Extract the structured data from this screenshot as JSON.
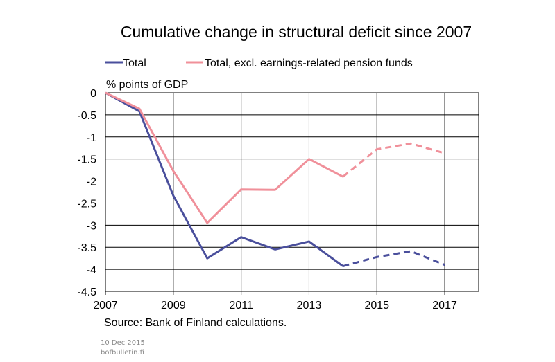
{
  "chart_data": {
    "type": "line",
    "title": "Cumulative change in structural deficit since 2007",
    "ylabel": "% points of GDP",
    "xlim": [
      2007,
      2018
    ],
    "ylim": [
      -4.5,
      0
    ],
    "x_ticks": [
      2007,
      2009,
      2011,
      2013,
      2015,
      2017
    ],
    "y_ticks": [
      0,
      -0.5,
      -1,
      -1.5,
      -2,
      -2.5,
      -3,
      -3.5,
      -4,
      -4.5
    ],
    "y_tick_labels": [
      "0",
      "-0.5",
      "-1",
      "-1.5",
      "-2",
      "-2.5",
      "-3",
      "-3.5",
      "-4",
      "-4.5"
    ],
    "grid": "horizontal",
    "legend_position": "top",
    "forecast_from": 2014,
    "series": [
      {
        "name": "Total",
        "color": "#4a4f9c",
        "x": [
          2007,
          2008,
          2009,
          2010,
          2011,
          2012,
          2013,
          2014,
          2015,
          2016,
          2017
        ],
        "y": [
          0,
          -0.42,
          -2.33,
          -3.75,
          -3.27,
          -3.55,
          -3.37,
          -3.93,
          -3.72,
          -3.59,
          -3.9
        ]
      },
      {
        "name": "Total, excl. earnings-related pension funds",
        "color": "#f0909a",
        "x": [
          2007,
          2008,
          2009,
          2010,
          2011,
          2012,
          2013,
          2014,
          2015,
          2016,
          2017
        ],
        "y": [
          0,
          -0.36,
          -1.77,
          -2.95,
          -2.19,
          -2.2,
          -1.5,
          -1.9,
          -1.28,
          -1.15,
          -1.37
        ]
      }
    ],
    "source": "Source: Bank of Finland calculations."
  },
  "footer": {
    "date": "10 Dec 2015",
    "site": "bofbulletin.fi"
  }
}
